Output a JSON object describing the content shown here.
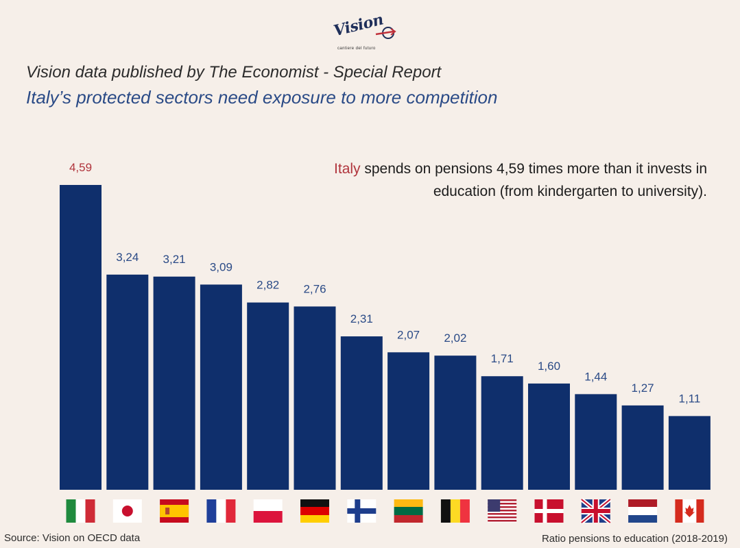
{
  "logo": {
    "name": "Vision",
    "tagline": "cantiere del futuro"
  },
  "header": {
    "subtitle": "Vision data published by The Economist - Special Report",
    "title": "Italy’s protected sectors need exposure to more competition"
  },
  "annotation": {
    "highlight": "Italy",
    "text_line1": " spends on pensions 4,59 times more than it invests in",
    "text_line2": "education (from kindergarten to university)."
  },
  "colors": {
    "bar": "#0f2f6c",
    "label": "#2a4a86",
    "highlight_label": "#b0343c",
    "background": "#f6efe9"
  },
  "chart_data": {
    "type": "bar",
    "title": "Ratio pensions to education (2018-2019)",
    "xlabel": "",
    "ylabel": "",
    "ylim": [
      0,
      5.03
    ],
    "categories": [
      "Italy",
      "Japan",
      "Spain",
      "France",
      "Poland",
      "Germany",
      "Finland",
      "Lithuania",
      "Belgium",
      "United States",
      "Denmark",
      "United Kingdom",
      "Netherlands",
      "Canada"
    ],
    "flags": [
      "italy-flag-icon",
      "japan-flag-icon",
      "spain-flag-icon",
      "france-flag-icon",
      "poland-flag-icon",
      "germany-flag-icon",
      "finland-flag-icon",
      "lithuania-flag-icon",
      "belgium-flag-icon",
      "usa-flag-icon",
      "denmark-flag-icon",
      "uk-flag-icon",
      "netherlands-flag-icon",
      "canada-flag-icon"
    ],
    "values": [
      4.59,
      3.24,
      3.21,
      3.09,
      2.82,
      2.76,
      2.31,
      2.07,
      2.02,
      1.71,
      1.6,
      1.44,
      1.27,
      1.11
    ],
    "labels": [
      "4,59",
      "3,24",
      "3,21",
      "3,09",
      "2,82",
      "2,76",
      "2,31",
      "2,07",
      "2,02",
      "1,71",
      "1,60",
      "1,44",
      "1,27",
      "1,11"
    ],
    "grid": false,
    "legend": "none"
  },
  "footer": {
    "source": "Source: Vision on OECD data",
    "note": "Ratio pensions to education (2018-2019)"
  }
}
